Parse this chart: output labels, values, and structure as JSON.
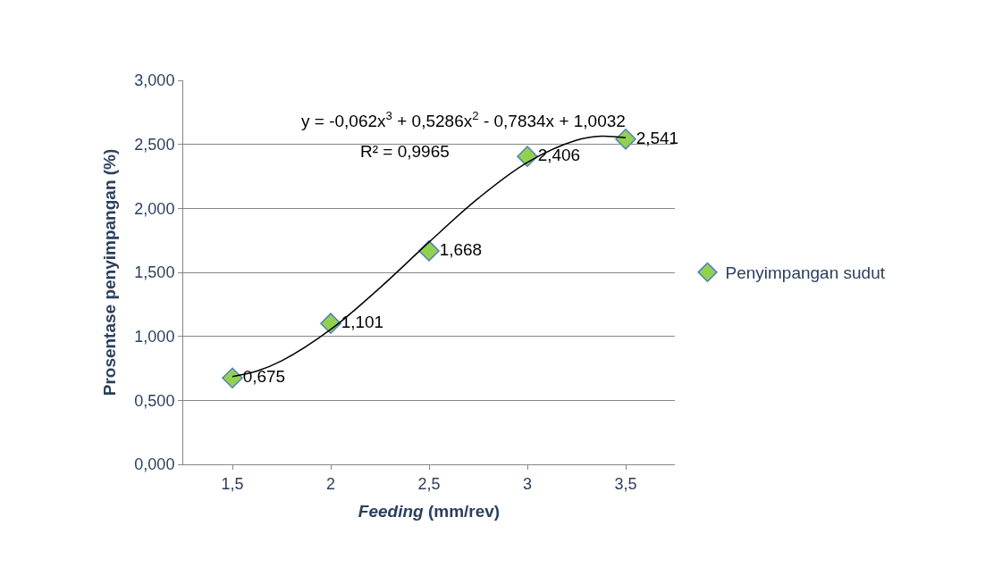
{
  "chart_data": {
    "type": "scatter",
    "xlabel": "Feeding (mm/rev)",
    "ylabel": "Prosentase penyimpangan (%)",
    "x": [
      1.5,
      2,
      2.5,
      3,
      3.5
    ],
    "series": [
      {
        "name": "Penyimpangan sudut",
        "color": "#92d050",
        "values": [
          0.675,
          1.101,
          1.668,
          2.406,
          2.541
        ],
        "value_labels": [
          "0,675",
          "1,101",
          "1,668",
          "2,406",
          "2,541"
        ],
        "marker": "diamond"
      },
      {
        "type": "line",
        "color": "#000000",
        "x": [
          1.5,
          1.625,
          1.75,
          2,
          2.25,
          2.5,
          2.75,
          3,
          3.25,
          3.375,
          3.5
        ],
        "values": [
          0.686,
          0.729,
          0.808,
          1.054,
          1.379,
          1.736,
          2.078,
          2.359,
          2.532,
          2.564,
          2.551
        ],
        "marker": "none",
        "line_style": "solid"
      }
    ],
    "annotations": [
      "y = -0,062x$^{3}$ + 0,5286x$^{2}$ - 0,7834x + 1,0032",
      "R² = 0,9965"
    ],
    "xlim": [
      1.25,
      3.75
    ],
    "xticks": [
      {
        "value": 1.5,
        "label": "1,5"
      },
      2,
      {
        "value": 2.5,
        "label": "2,5"
      },
      3,
      {
        "value": 3.5,
        "label": "3,5"
      }
    ],
    "ylim": [
      0,
      3
    ],
    "yticks": [
      {
        "value": 0,
        "label": "0,000"
      },
      {
        "value": 0.5,
        "label": "0,500"
      },
      {
        "value": 1,
        "label": "1,000"
      },
      {
        "value": 1.5,
        "label": "1,500"
      },
      {
        "value": 2,
        "label": "2,000"
      },
      {
        "value": 2.5,
        "label": "2,500"
      },
      {
        "value": 3,
        "label": "3,000"
      }
    ],
    "grid": "y",
    "legend": "right"
  }
}
